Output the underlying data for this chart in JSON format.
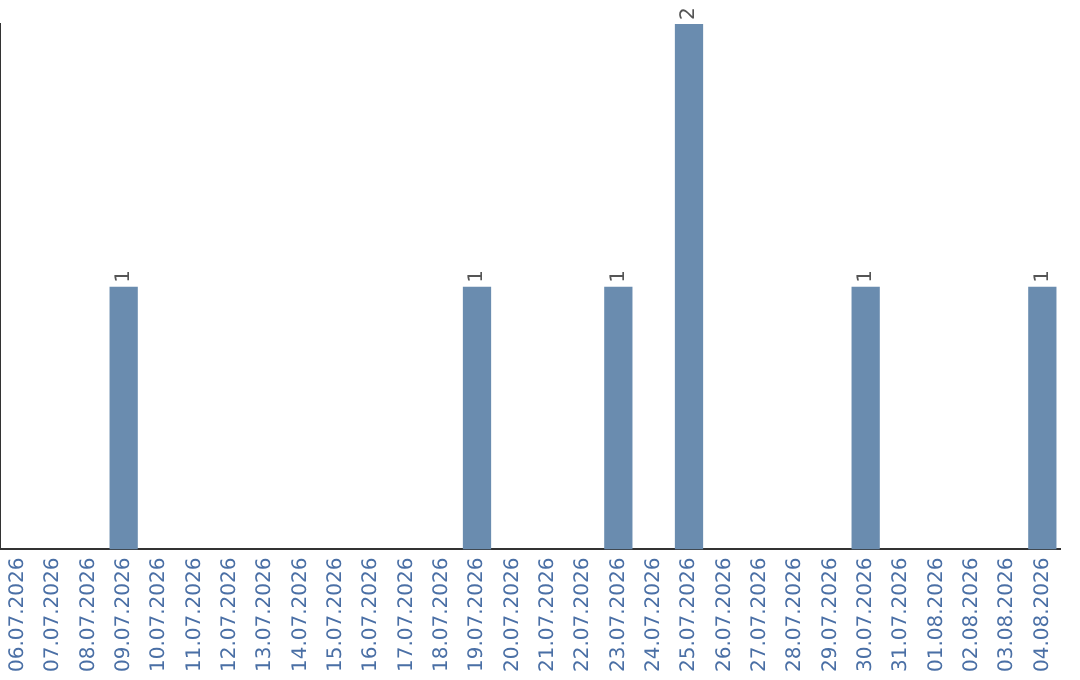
{
  "chart_data": {
    "type": "bar",
    "categories": [
      "06.07.2026",
      "07.07.2026",
      "08.07.2026",
      "09.07.2026",
      "10.07.2026",
      "11.07.2026",
      "12.07.2026",
      "13.07.2026",
      "14.07.2026",
      "15.07.2026",
      "16.07.2026",
      "17.07.2026",
      "18.07.2026",
      "19.07.2026",
      "20.07.2026",
      "21.07.2026",
      "22.07.2026",
      "23.07.2026",
      "24.07.2026",
      "25.07.2026",
      "26.07.2026",
      "27.07.2026",
      "28.07.2026",
      "29.07.2026",
      "30.07.2026",
      "31.07.2026",
      "01.08.2026",
      "02.08.2026",
      "03.08.2026",
      "04.08.2026"
    ],
    "values": [
      0,
      0,
      0,
      1,
      0,
      0,
      0,
      0,
      0,
      0,
      0,
      0,
      0,
      1,
      0,
      0,
      0,
      1,
      0,
      2,
      0,
      0,
      0,
      0,
      1,
      0,
      0,
      0,
      0,
      1
    ],
    "value_labels": [
      null,
      null,
      null,
      "1",
      null,
      null,
      null,
      null,
      null,
      null,
      null,
      null,
      null,
      "1",
      null,
      null,
      null,
      "1",
      null,
      "2",
      null,
      null,
      null,
      null,
      "1",
      null,
      null,
      null,
      null,
      "1"
    ],
    "color": "#6a8caf",
    "grid": false,
    "legend": false,
    "tick_labels": "x"
  }
}
